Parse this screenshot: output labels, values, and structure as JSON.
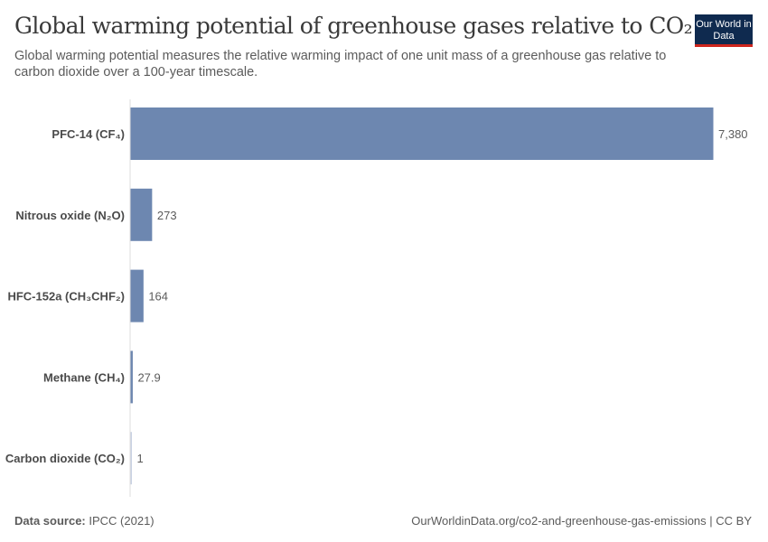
{
  "header": {
    "title": "Global warming potential of greenhouse gases relative to CO₂",
    "subtitle": "Global warming potential measures the relative warming impact of one unit mass of a greenhouse gas relative to carbon dioxide over a 100-year timescale.",
    "logo": "Our World in Data"
  },
  "footer": {
    "source_label": "Data source:",
    "source": "IPCC (2021)",
    "url": "OurWorldinData.org/co2-and-greenhouse-gas-emissions | CC BY"
  },
  "chart_data": {
    "type": "bar",
    "orientation": "horizontal",
    "categories": [
      "PFC-14 (CF₄)",
      "Nitrous oxide (N₂O)",
      "HFC-152a (CH₃CHF₂)",
      "Methane (CH₄)",
      "Carbon dioxide (CO₂)"
    ],
    "values": [
      7380,
      273,
      164,
      27.9,
      1
    ],
    "labels": [
      "7,380",
      "273",
      "164",
      "27.9",
      "1"
    ],
    "xlim": [
      0,
      7380
    ],
    "grid": false,
    "colors": {
      "bar": "#6d87b0",
      "co2_bar": "#c9d2e3",
      "axis": "#dddddd"
    }
  }
}
